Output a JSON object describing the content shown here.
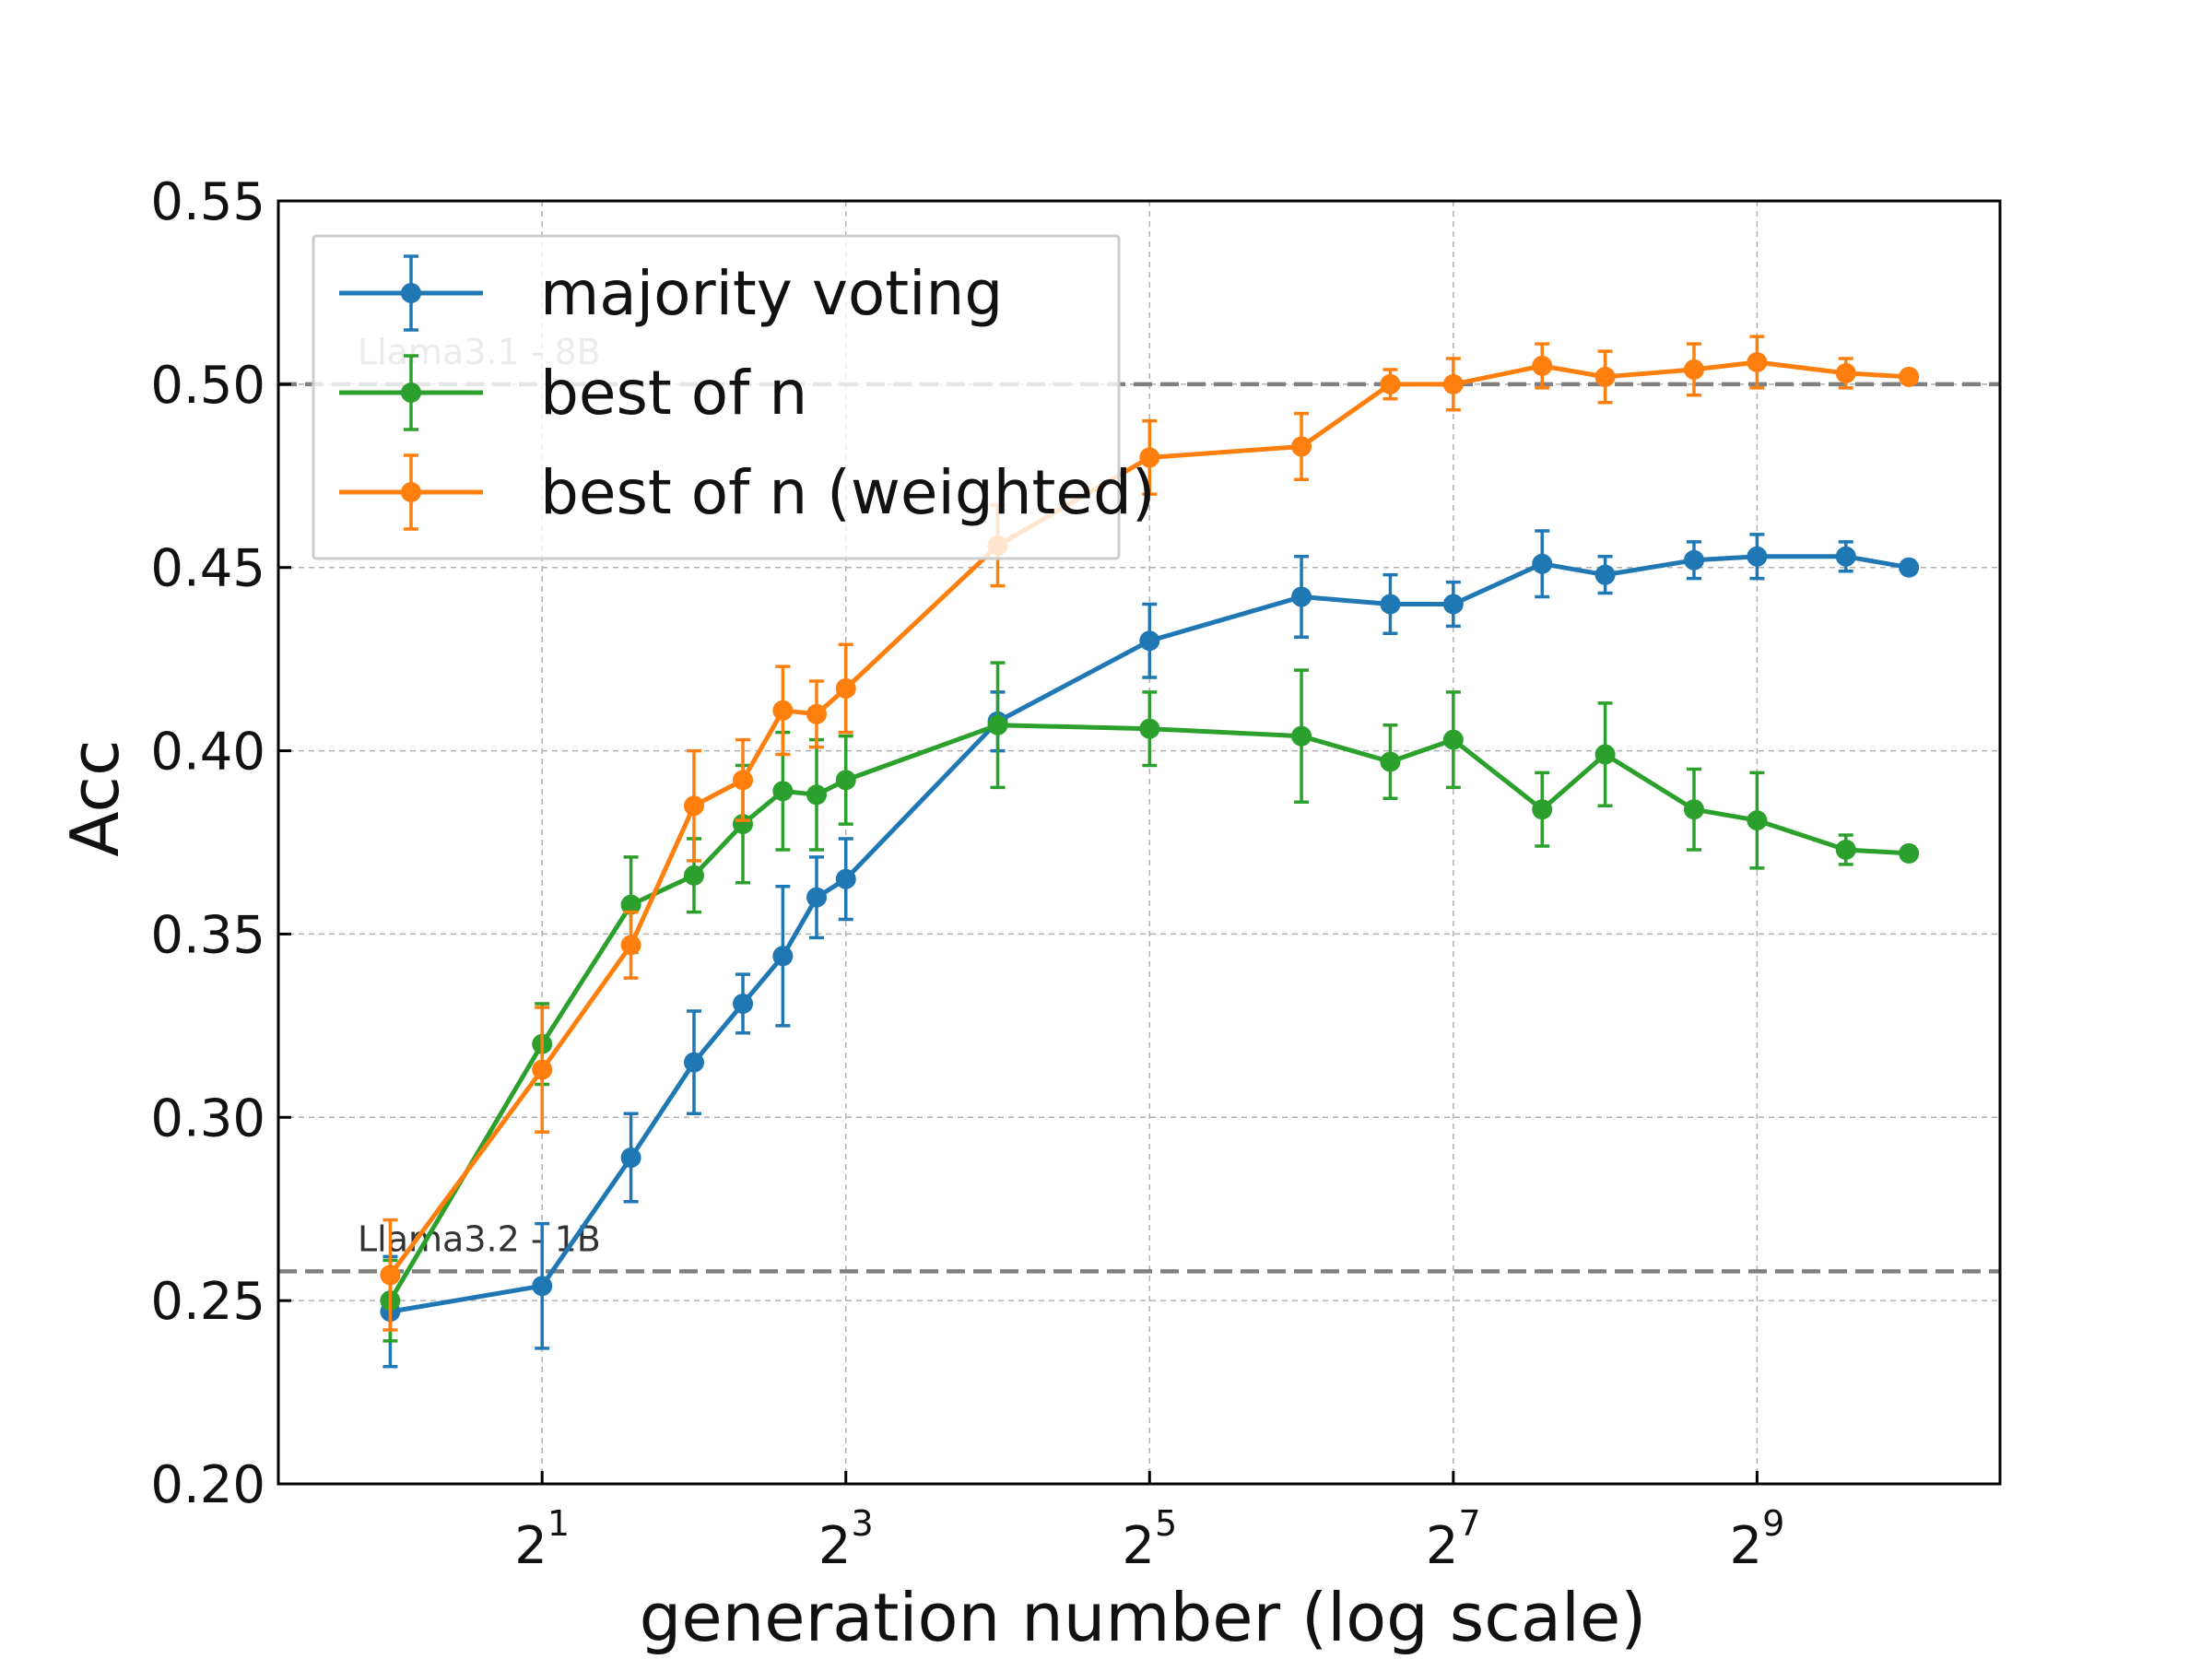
{
  "chart_data": {
    "type": "line",
    "title": "",
    "xlabel": "generation number (log scale)",
    "ylabel": "Acc",
    "x_scale": "log2",
    "xlim": [
      0.6,
      1552
    ],
    "ylim": [
      0.2,
      0.55
    ],
    "grid": true,
    "legend_position": "upper-left",
    "x_ticks": [
      {
        "value": 2,
        "base": "2",
        "exp": "1"
      },
      {
        "value": 8,
        "base": "2",
        "exp": "3"
      },
      {
        "value": 32,
        "base": "2",
        "exp": "5"
      },
      {
        "value": 128,
        "base": "2",
        "exp": "7"
      },
      {
        "value": 512,
        "base": "2",
        "exp": "9"
      }
    ],
    "y_ticks": [
      {
        "value": 0.2,
        "label": "0.20"
      },
      {
        "value": 0.25,
        "label": "0.25"
      },
      {
        "value": 0.3,
        "label": "0.30"
      },
      {
        "value": 0.35,
        "label": "0.35"
      },
      {
        "value": 0.4,
        "label": "0.40"
      },
      {
        "value": 0.45,
        "label": "0.45"
      },
      {
        "value": 0.5,
        "label": "0.50"
      },
      {
        "value": 0.55,
        "label": "0.55"
      }
    ],
    "x": [
      1,
      2,
      3,
      4,
      5,
      6,
      7,
      8,
      16,
      32,
      64,
      96,
      128,
      192,
      256,
      384,
      512,
      768,
      1024
    ],
    "reference_lines": [
      {
        "label": "Llama3.1 - 8B",
        "value": 0.5,
        "color": "#808080",
        "label_color": "#999999"
      },
      {
        "label": "Llama3.2 - 1B",
        "value": 0.258,
        "color": "#808080",
        "label_color": "#333333"
      }
    ],
    "series": [
      {
        "name": "majority voting",
        "color": "#1f77b4",
        "values": [
          0.247,
          0.254,
          0.289,
          0.315,
          0.331,
          0.344,
          0.36,
          0.365,
          0.408,
          0.43,
          0.442,
          0.44,
          0.44,
          0.451,
          0.448,
          0.452,
          0.453,
          0.453,
          0.45
        ],
        "errors": [
          0.015,
          0.017,
          0.012,
          0.014,
          0.008,
          0.019,
          0.011,
          0.011,
          0.008,
          0.01,
          0.011,
          0.008,
          0.006,
          0.009,
          0.005,
          0.005,
          0.006,
          0.004,
          0.001
        ]
      },
      {
        "name": "best of n",
        "color": "#2ca02c",
        "values": [
          0.25,
          0.32,
          0.358,
          0.366,
          0.38,
          0.389,
          0.388,
          0.392,
          0.407,
          0.406,
          0.404,
          0.397,
          0.403,
          0.384,
          0.399,
          0.384,
          0.381,
          0.373,
          0.372
        ],
        "errors": [
          0.011,
          0.011,
          0.013,
          0.01,
          0.016,
          0.016,
          0.015,
          0.012,
          0.017,
          0.01,
          0.018,
          0.01,
          0.013,
          0.01,
          0.014,
          0.011,
          0.013,
          0.004,
          0.001
        ]
      },
      {
        "name": "best of n (weighted)",
        "color": "#ff7f0e",
        "values": [
          0.257,
          0.313,
          0.347,
          0.385,
          0.392,
          0.411,
          0.41,
          0.417,
          0.456,
          0.48,
          0.483,
          0.5,
          0.5,
          0.505,
          0.502,
          0.504,
          0.506,
          0.503,
          0.502
        ],
        "errors": [
          0.015,
          0.017,
          0.009,
          0.015,
          0.011,
          0.012,
          0.009,
          0.012,
          0.011,
          0.01,
          0.009,
          0.004,
          0.007,
          0.006,
          0.007,
          0.007,
          0.007,
          0.004,
          0.001
        ]
      }
    ]
  }
}
